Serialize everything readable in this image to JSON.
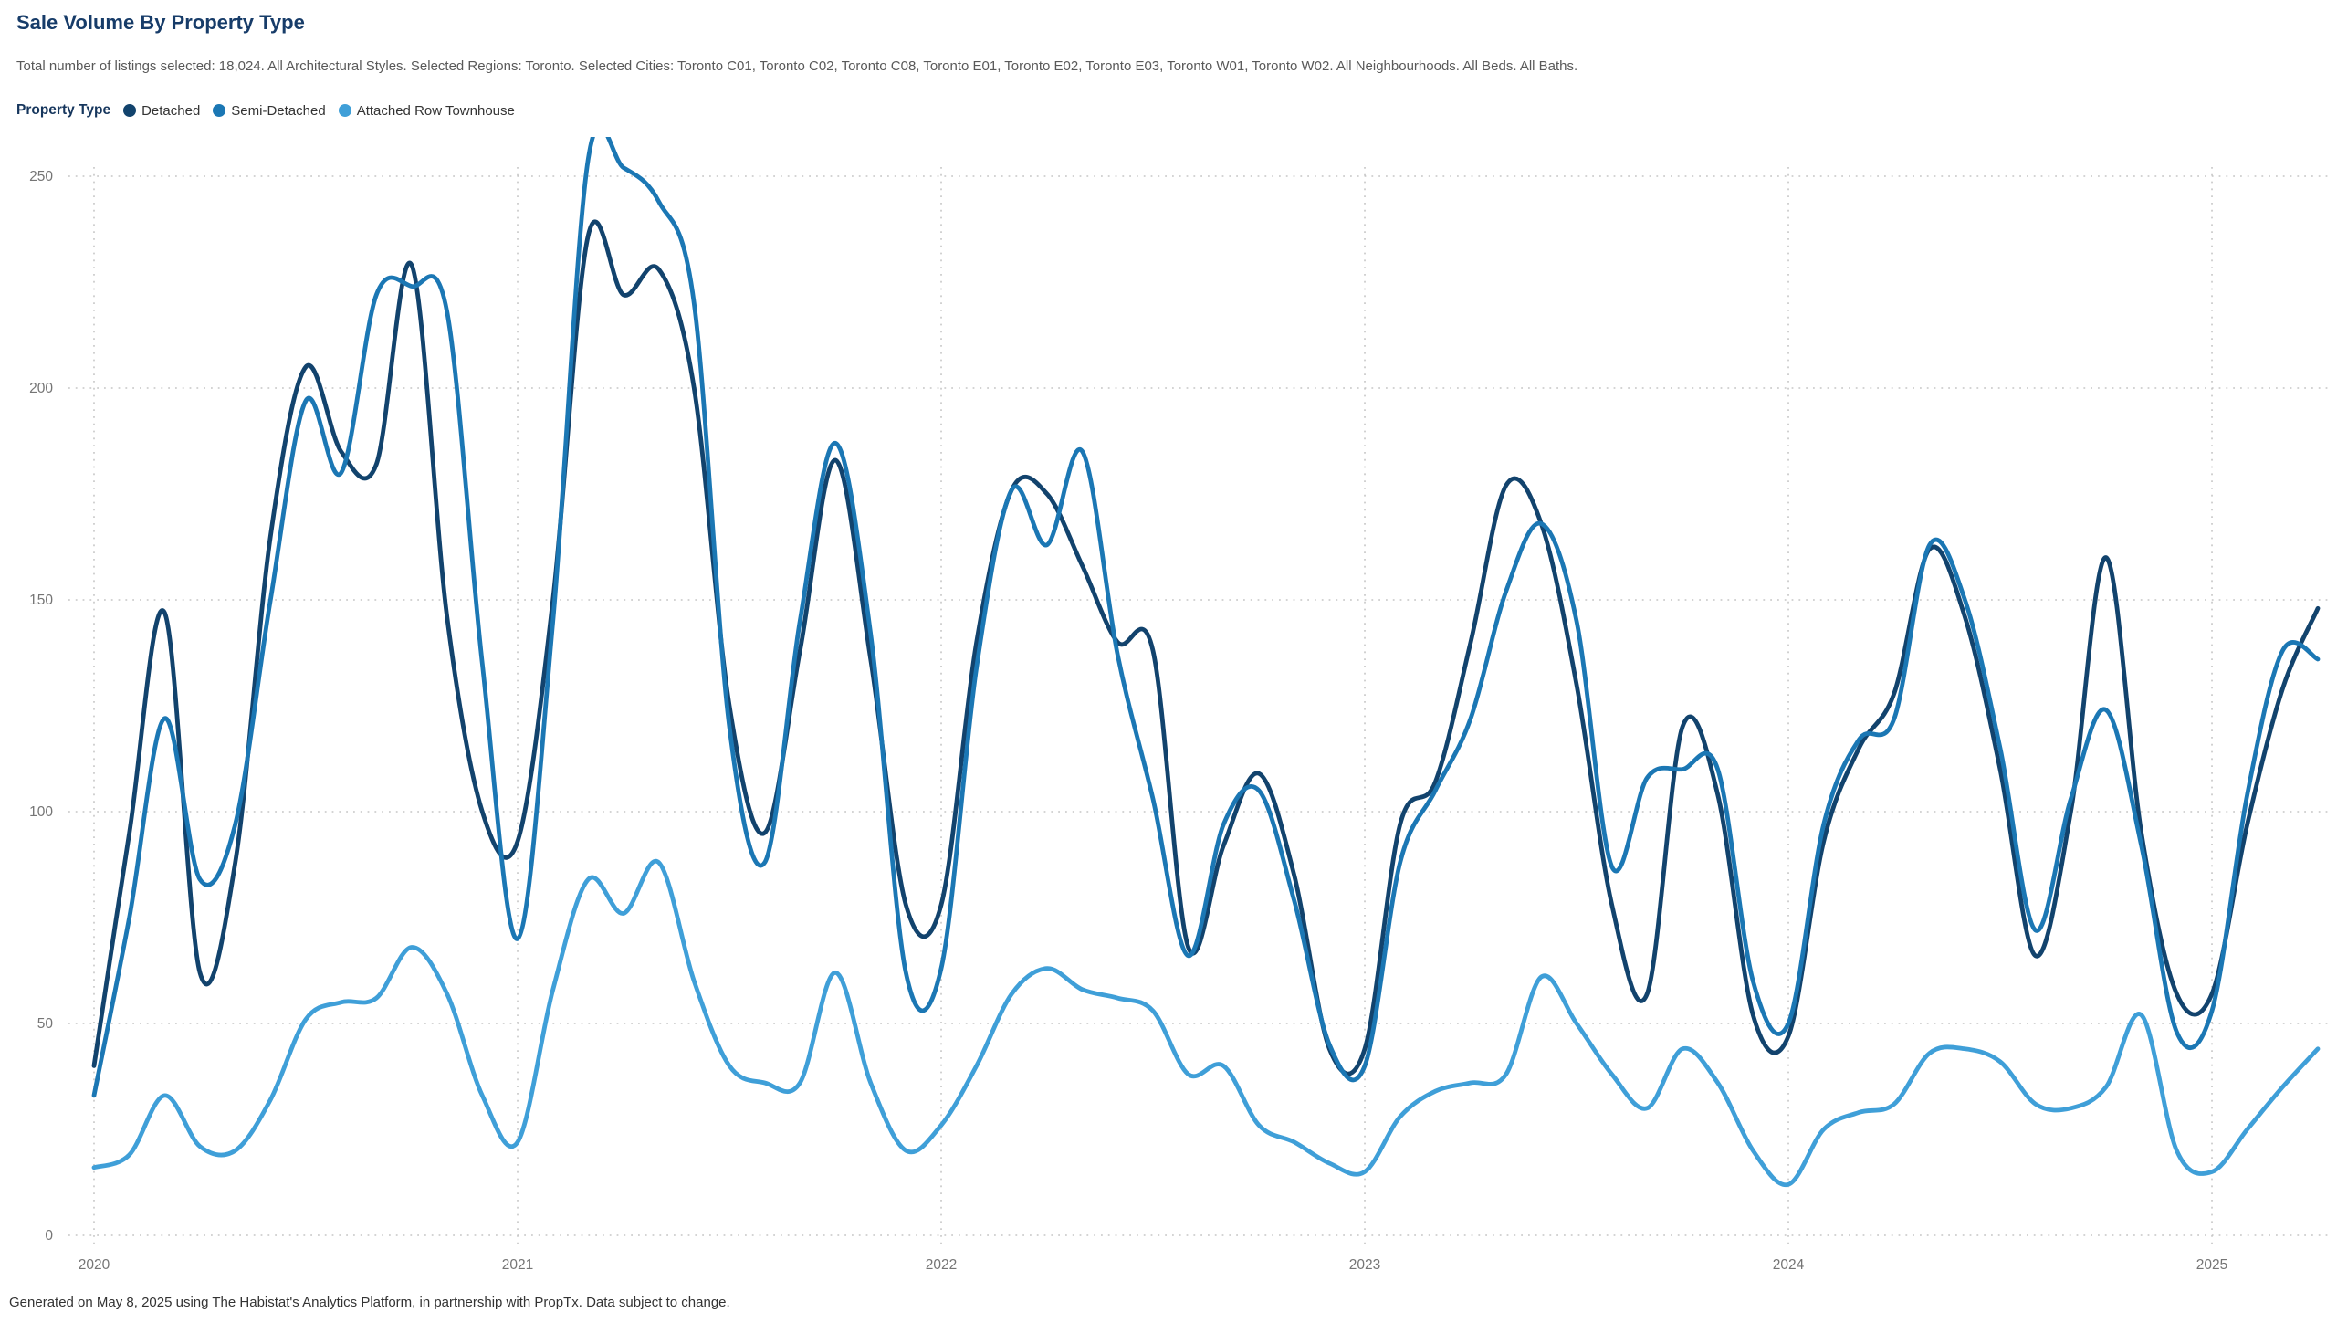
{
  "header": {
    "title": "Sale Volume By Property Type",
    "subtitle": "Total number of listings selected: 18,024. All Architectural Styles. Selected Regions: Toronto. Selected Cities: Toronto C01, Toronto C02, Toronto C08, Toronto E01, Toronto E02, Toronto E03, Toronto W01, Toronto W02. All Neighbourhoods. All Beds. All Baths."
  },
  "legend": {
    "title": "Property Type",
    "items": [
      {
        "label": "Detached",
        "color": "#12436d"
      },
      {
        "label": "Semi-Detached",
        "color": "#1b77b4"
      },
      {
        "label": "Attached Row Townhouse",
        "color": "#3f9fd8"
      }
    ]
  },
  "chart_data": {
    "type": "line",
    "title": "Sale Volume By Property Type",
    "x_interval": "monthly",
    "x_start": "2020-01",
    "x_end": "2025-04",
    "x_tick_labels": [
      "2020",
      "2021",
      "2022",
      "2023",
      "2024",
      "2025"
    ],
    "y_ticks": [
      0,
      50,
      100,
      150,
      200,
      250
    ],
    "ylim": [
      0,
      260
    ],
    "grid": "dotted",
    "legend_position": "top-left",
    "series": [
      {
        "name": "Detached",
        "color": "#12436d",
        "values": [
          40,
          95,
          147,
          62,
          88,
          165,
          205,
          185,
          182,
          229,
          146,
          100,
          93,
          150,
          236,
          222,
          228,
          200,
          125,
          95,
          138,
          183,
          136,
          78,
          78,
          140,
          176,
          175,
          158,
          140,
          138,
          68,
          92,
          109,
          85,
          44,
          44,
          97,
          107,
          140,
          177,
          168,
          130,
          78,
          57,
          120,
          104,
          52,
          47,
          93,
          115,
          128,
          162,
          146,
          110,
          66,
          100,
          160,
          95,
          57,
          57,
          97,
          129,
          148
        ]
      },
      {
        "name": "Semi-Detached",
        "color": "#1b77b4",
        "values": [
          33,
          75,
          122,
          84,
          97,
          150,
          197,
          180,
          222,
          224,
          218,
          135,
          70,
          145,
          254,
          252,
          244,
          220,
          120,
          88,
          145,
          187,
          142,
          62,
          63,
          134,
          176,
          163,
          185,
          137,
          103,
          66,
          97,
          105,
          79,
          45,
          40,
          88,
          105,
          122,
          152,
          168,
          145,
          87,
          108,
          110,
          110,
          60,
          50,
          97,
          117,
          122,
          163,
          150,
          115,
          72,
          103,
          124,
          92,
          48,
          53,
          104,
          138,
          136
        ]
      },
      {
        "name": "Attached Row Townhouse",
        "color": "#3f9fd8",
        "values": [
          16,
          19,
          33,
          21,
          20,
          32,
          51,
          55,
          56,
          68,
          57,
          33,
          22,
          58,
          84,
          76,
          88,
          60,
          40,
          36,
          36,
          62,
          36,
          20,
          26,
          40,
          57,
          63,
          58,
          56,
          53,
          38,
          40,
          26,
          22,
          17,
          15,
          28,
          34,
          36,
          38,
          61,
          50,
          38,
          30,
          44,
          36,
          20,
          12,
          25,
          29,
          31,
          43,
          44,
          41,
          31,
          30,
          35,
          52,
          20,
          15,
          25,
          35,
          44
        ]
      }
    ]
  },
  "footer": {
    "text": "Generated on May 8, 2025 using The Habistat's Analytics Platform, in partnership with PropTx. Data subject to change."
  }
}
